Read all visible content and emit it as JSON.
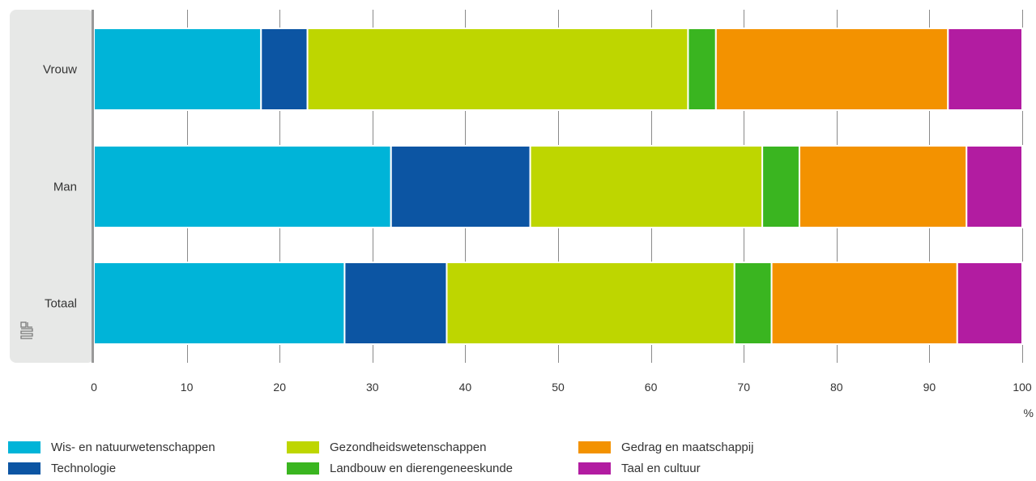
{
  "chart_data": {
    "type": "bar",
    "orientation": "horizontal",
    "stacked": true,
    "categories": [
      "Vrouw",
      "Man",
      "Totaal"
    ],
    "series": [
      {
        "name": "Wis- en natuurwetenschappen",
        "color": "#00b4d8",
        "values": [
          18,
          32,
          27
        ]
      },
      {
        "name": "Technologie",
        "color": "#0c55a3",
        "values": [
          5,
          15,
          11
        ]
      },
      {
        "name": "Gezondheidswetenschappen",
        "color": "#bed600",
        "values": [
          41,
          25,
          31
        ]
      },
      {
        "name": "Landbouw en diergeneeskunde",
        "color": "#3ab520",
        "values": [
          3,
          4,
          4
        ]
      },
      {
        "name": "Gedrag en maatschappij",
        "color": "#f39200",
        "values": [
          25,
          18,
          20
        ]
      },
      {
        "name": "Taal en cultuur",
        "color": "#b21ca1",
        "values": [
          8,
          6,
          7
        ]
      }
    ],
    "xlim": [
      0,
      100
    ],
    "xticks": [
      "0",
      "10",
      "20",
      "30",
      "40",
      "50",
      "60",
      "70",
      "80",
      "90",
      "100"
    ],
    "xunit": "%",
    "grid": true,
    "legend_position": "bottom"
  },
  "legend_labels": [
    "Wis- en natuurwetenschappen",
    "Technologie",
    "Gezondheidswetenschappen",
    "Landbouw en dierengeneeskunde",
    "Gedrag en maatschappij",
    "Taal en cultuur"
  ],
  "logo": {
    "icon": "cbs-logo-icon"
  }
}
